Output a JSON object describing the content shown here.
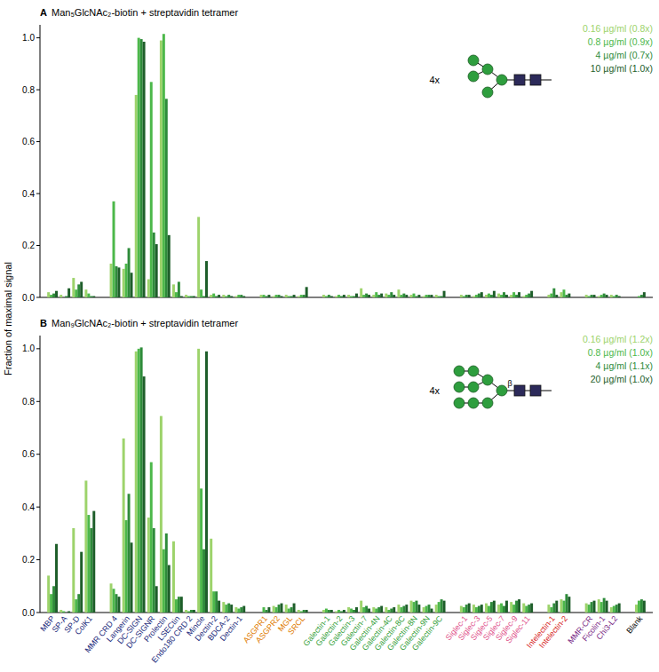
{
  "chart_data": [
    {
      "type": "bar",
      "panel_label": "A",
      "title": "Man₅GlcNAc₂-biotin + streptavidin tetramer",
      "ylabel": "Fraction of maximal signal",
      "annotation": "4x",
      "categories": [
        "MBP",
        "SP-A",
        "SP-D",
        "ColK1",
        null,
        "MMR CRD 4",
        "Langerin",
        "DC-SIGN",
        "DC-SIGNR",
        "Prolectin",
        "LSECtin",
        "Endo180 CRD 2",
        "Mincle",
        "Dectin-2",
        "BDCA-2",
        "Dectin-1",
        null,
        "ASGPR1",
        "ASGPR2",
        "MGL",
        "SRCL",
        null,
        "Galectin-1",
        "Galectin-2",
        "Galectin-3",
        "Galectin-7",
        "Galectin-4N",
        "Galectin-4C",
        "Galectin-8C",
        "Galectin-8N",
        "Galectin-9N",
        "Galectin-9C",
        null,
        "Siglec-1",
        "Siglec-3",
        "Siglec-5",
        "Siglec-7",
        "Siglec-9",
        "Siglec-11",
        null,
        "Intelectin-1",
        "Intelectin-2",
        null,
        "MMR-CR",
        "Ficolin-1",
        "Chi3-L2",
        null,
        "Blank"
      ],
      "series": [
        {
          "name": "0.16 µg/ml (0.8x)",
          "color": "#9dd36b",
          "values": [
            0.02,
            0.01,
            0.075,
            0.03,
            null,
            0.13,
            0.11,
            0.78,
            0.07,
            0.99,
            0.05,
            0.01,
            0.31,
            0.01,
            0.01,
            0.005,
            null,
            0.01,
            0.005,
            0.01,
            0.005,
            null,
            0.01,
            0.005,
            0.01,
            0.035,
            0.01,
            0.015,
            0.03,
            0.01,
            0.005,
            0.01,
            null,
            0.01,
            0.005,
            0.01,
            0.015,
            0.01,
            0.005,
            null,
            0.01,
            0.02,
            null,
            0.01,
            0.005,
            0.01,
            null,
            0.0
          ]
        },
        {
          "name": "0.8 µg/ml (0.9x)",
          "color": "#4cb84a",
          "values": [
            0.01,
            0.0,
            0.03,
            0.015,
            null,
            0.37,
            0.13,
            1.0,
            0.83,
            1.015,
            0.02,
            0.005,
            0.03,
            0.015,
            0.005,
            0.01,
            null,
            0.01,
            0.01,
            0.005,
            0.01,
            null,
            0.005,
            0.01,
            0.005,
            0.01,
            0.02,
            0.01,
            0.01,
            0.015,
            0.01,
            0.005,
            null,
            0.005,
            0.01,
            0.015,
            0.01,
            0.02,
            0.01,
            null,
            0.015,
            0.03,
            null,
            0.005,
            0.01,
            0.005,
            null,
            0.005
          ]
        },
        {
          "name": "4 µg/ml (0.7x)",
          "color": "#2e8b3a",
          "values": [
            0.015,
            0.005,
            0.05,
            0.005,
            null,
            0.12,
            0.19,
            0.995,
            0.25,
            0.765,
            0.06,
            0.005,
            0.005,
            0.005,
            0.01,
            0.01,
            null,
            0.005,
            0.01,
            0.005,
            0.01,
            null,
            0.01,
            0.005,
            0.005,
            0.015,
            0.01,
            0.02,
            0.015,
            0.005,
            0.01,
            0.005,
            null,
            0.01,
            0.015,
            0.01,
            0.02,
            0.01,
            0.015,
            null,
            0.035,
            0.01,
            null,
            0.01,
            0.015,
            0.01,
            null,
            0.01
          ]
        },
        {
          "name": "10 µg/ml (1.0x)",
          "color": "#1e5e2a",
          "values": [
            0.025,
            0.035,
            0.06,
            0.005,
            null,
            0.115,
            0.095,
            0.985,
            0.205,
            0.24,
            0.005,
            0.005,
            0.14,
            0.01,
            0.005,
            0.005,
            null,
            0.01,
            0.005,
            0.01,
            0.04,
            null,
            0.005,
            0.01,
            0.015,
            0.01,
            0.015,
            0.01,
            0.01,
            0.01,
            0.01,
            0.025,
            null,
            0.01,
            0.02,
            0.025,
            0.01,
            0.02,
            0.025,
            null,
            0.01,
            0.015,
            null,
            0.01,
            0.01,
            0.005,
            null,
            0.02
          ]
        }
      ],
      "ylim": [
        0,
        1.05
      ],
      "yticks": [
        {
          "value": 0,
          "label": "0.0"
        },
        {
          "value": 0.2,
          "label": "0.2"
        },
        {
          "value": 0.4,
          "label": "0.4"
        },
        {
          "value": 0.6,
          "label": "0.6"
        },
        {
          "value": 0.8,
          "label": "0.8"
        },
        {
          "value": 1,
          "label": "1.0"
        }
      ],
      "legend": "top-right",
      "tick_labels": "y"
    },
    {
      "type": "bar",
      "panel_label": "B",
      "title": "Man₉GlcNAc₂-biotin + streptavidin tetramer",
      "annotation": "4x",
      "linkage": "β",
      "categories": [
        "MBP",
        "SP-A",
        "SP-D",
        "ColK1",
        null,
        "MMR CRD 4",
        "Langerin",
        "DC-SIGN",
        "DC-SIGNR",
        "Prolectin",
        "LSECtin",
        "Endo180 CRD 2",
        "Mincle",
        "Dectin-2",
        "BDCA-2",
        "Dectin-1",
        null,
        "ASGPR1",
        "ASGPR2",
        "MGL",
        "SRCL",
        null,
        "Galectin-1",
        "Galectin-2",
        "Galectin-3",
        "Galectin-7",
        "Galectin-4N",
        "Galectin-4C",
        "Galectin-8C",
        "Galectin-8N",
        "Galectin-9N",
        "Galectin-9C",
        null,
        "Siglec-1",
        "Siglec-3",
        "Siglec-5",
        "Siglec-7",
        "Siglec-9",
        "Siglec-11",
        null,
        "Intelectin-1",
        "Intelectin-2",
        null,
        "MMR-CR",
        "Ficolin-1",
        "Chi3-L2",
        null,
        "Blank"
      ],
      "series": [
        {
          "name": "0.16 µg/ml (1.2x)",
          "color": "#9dd36b",
          "values": [
            0.14,
            0.01,
            0.32,
            0.5,
            null,
            0.11,
            0.66,
            0.99,
            0.36,
            0.745,
            0.27,
            0.01,
            1.0,
            0.28,
            0.04,
            0.02,
            null,
            0.0,
            0.025,
            0.03,
            0.01,
            null,
            0.01,
            0.005,
            0.02,
            0.045,
            0.02,
            0.02,
            0.03,
            0.045,
            0.02,
            0.03,
            null,
            0.025,
            0.03,
            0.035,
            0.03,
            0.04,
            0.035,
            null,
            0.03,
            0.05,
            null,
            0.035,
            0.05,
            0.02,
            null,
            0.03
          ]
        },
        {
          "name": "0.8 µg/ml (1.0x)",
          "color": "#4cb84a",
          "values": [
            0.07,
            0.005,
            0.05,
            0.37,
            null,
            0.09,
            0.35,
            1.0,
            0.57,
            0.24,
            0.05,
            0.005,
            0.47,
            0.08,
            0.03,
            0.015,
            null,
            0.02,
            0.02,
            0.015,
            0.005,
            null,
            0.015,
            0.01,
            0.015,
            0.02,
            0.015,
            0.01,
            0.02,
            0.04,
            0.025,
            0.04,
            null,
            0.02,
            0.02,
            0.025,
            0.035,
            0.03,
            0.025,
            null,
            0.02,
            0.045,
            null,
            0.03,
            0.04,
            0.025,
            null,
            0.045
          ]
        },
        {
          "name": "4 µg/ml (1.1x)",
          "color": "#2e8b3a",
          "values": [
            0.1,
            0.0,
            0.07,
            0.32,
            null,
            0.07,
            0.45,
            1.005,
            0.32,
            0.3,
            0.06,
            0.01,
            0.24,
            0.08,
            0.035,
            0.02,
            null,
            0.01,
            0.03,
            0.02,
            0.01,
            null,
            0.01,
            0.005,
            0.01,
            0.025,
            0.02,
            0.015,
            0.025,
            0.045,
            0.03,
            0.05,
            null,
            0.03,
            0.025,
            0.04,
            0.025,
            0.045,
            0.03,
            null,
            0.035,
            0.07,
            null,
            0.04,
            0.055,
            0.03,
            null,
            0.05
          ]
        },
        {
          "name": "20 µg/ml (1.0x)",
          "color": "#1e5e2a",
          "values": [
            0.26,
            0.005,
            0.23,
            0.385,
            null,
            0.06,
            0.265,
            0.895,
            0.1,
            0.18,
            0.06,
            0.01,
            0.99,
            0.045,
            0.03,
            0.025,
            null,
            0.02,
            0.035,
            0.035,
            0.01,
            null,
            0.01,
            0.01,
            0.02,
            0.015,
            0.025,
            0.02,
            0.03,
            0.03,
            0.015,
            0.045,
            null,
            0.035,
            0.03,
            0.045,
            0.045,
            0.05,
            0.035,
            null,
            0.045,
            0.06,
            null,
            0.045,
            0.045,
            0.035,
            null,
            0.045
          ]
        }
      ],
      "ylim": [
        0,
        1.05
      ],
      "yticks": [
        {
          "value": 0,
          "label": "0.0"
        },
        {
          "value": 0.2,
          "label": "0.2"
        },
        {
          "value": 0.4,
          "label": "0.4"
        },
        {
          "value": 0.6,
          "label": "0.6"
        },
        {
          "value": 0.8,
          "label": "0.8"
        },
        {
          "value": 1,
          "label": "1.0"
        }
      ],
      "legend": "top-right"
    }
  ]
}
